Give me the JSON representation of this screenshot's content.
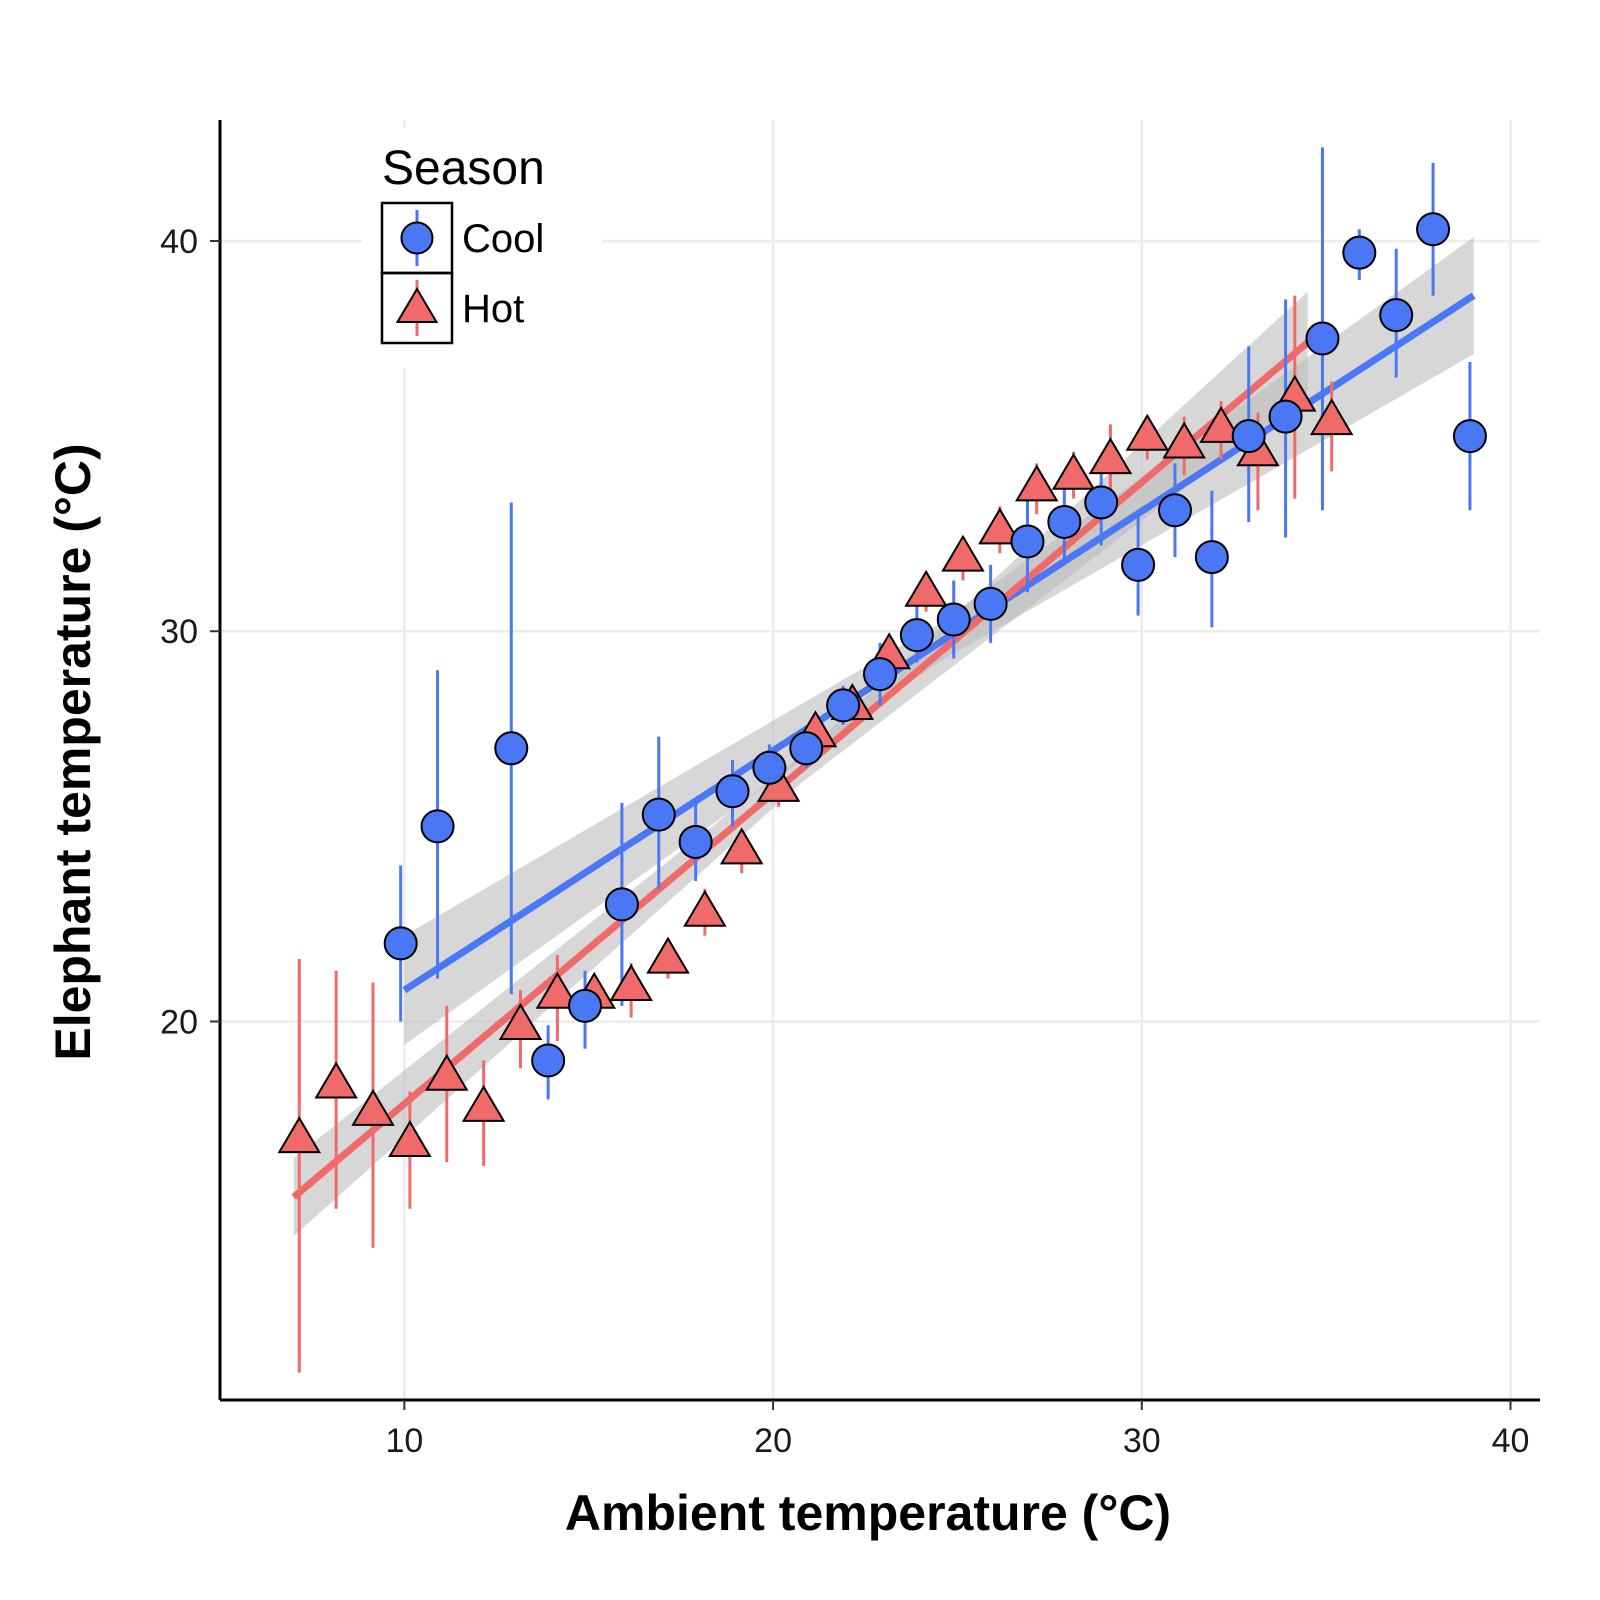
{
  "chart_data": {
    "type": "scatter",
    "xlabel": "Ambient temperature (°C)",
    "ylabel": "Elephant temperature (°C)",
    "xlim": [
      5,
      40.8
    ],
    "ylim": [
      10.3,
      43.1
    ],
    "x_ticks": [
      10,
      20,
      30,
      40
    ],
    "y_ticks": [
      20,
      30,
      40
    ],
    "grid": true,
    "legend": {
      "title": "Season",
      "placement": "top-left",
      "entries": [
        "Cool",
        "Hot"
      ]
    },
    "colors": {
      "Cool": "#4a78f5",
      "Hot": "#f06a6a",
      "band": "#bdbdbd"
    },
    "series": [
      {
        "name": "Cool",
        "marker": "circle",
        "points": [
          {
            "x": 10,
            "y": 22.0,
            "low": 20.0,
            "high": 24.0
          },
          {
            "x": 11,
            "y": 25.0,
            "low": 21.1,
            "high": 29.0
          },
          {
            "x": 13,
            "y": 27.0,
            "low": 20.7,
            "high": 33.3
          },
          {
            "x": 14,
            "y": 19.0,
            "low": 18.0,
            "high": 19.9
          },
          {
            "x": 15,
            "y": 20.4,
            "low": 19.3,
            "high": 21.3
          },
          {
            "x": 16,
            "y": 23.0,
            "low": 20.4,
            "high": 25.6
          },
          {
            "x": 17,
            "y": 25.3,
            "low": 23.4,
            "high": 27.3
          },
          {
            "x": 18,
            "y": 24.6,
            "low": 23.6,
            "high": 25.6
          },
          {
            "x": 19,
            "y": 25.9,
            "low": 25.0,
            "high": 26.7
          },
          {
            "x": 20,
            "y": 26.5,
            "low": 25.9,
            "high": 27.1
          },
          {
            "x": 21,
            "y": 27.0,
            "low": 26.5,
            "high": 27.4
          },
          {
            "x": 22,
            "y": 28.1,
            "low": 27.6,
            "high": 28.6
          },
          {
            "x": 23,
            "y": 28.9,
            "low": 28.1,
            "high": 29.7
          },
          {
            "x": 24,
            "y": 29.9,
            "low": 29.2,
            "high": 30.7
          },
          {
            "x": 25,
            "y": 30.3,
            "low": 29.3,
            "high": 31.3
          },
          {
            "x": 26,
            "y": 30.7,
            "low": 29.7,
            "high": 31.7
          },
          {
            "x": 27,
            "y": 32.3,
            "low": 31.0,
            "high": 33.6
          },
          {
            "x": 28,
            "y": 32.8,
            "low": 31.8,
            "high": 33.8
          },
          {
            "x": 29,
            "y": 33.3,
            "low": 32.2,
            "high": 34.4
          },
          {
            "x": 30,
            "y": 31.7,
            "low": 30.4,
            "high": 33.0
          },
          {
            "x": 31,
            "y": 33.1,
            "low": 31.9,
            "high": 34.3
          },
          {
            "x": 32,
            "y": 31.9,
            "low": 30.1,
            "high": 33.6
          },
          {
            "x": 33,
            "y": 35.0,
            "low": 32.8,
            "high": 37.3
          },
          {
            "x": 34,
            "y": 35.5,
            "low": 32.4,
            "high": 38.5
          },
          {
            "x": 35,
            "y": 37.5,
            "low": 33.1,
            "high": 42.4
          },
          {
            "x": 36,
            "y": 39.7,
            "low": 39.0,
            "high": 40.3
          },
          {
            "x": 37,
            "y": 38.1,
            "low": 36.5,
            "high": 39.8
          },
          {
            "x": 38,
            "y": 40.3,
            "low": 38.6,
            "high": 42.0
          },
          {
            "x": 39,
            "y": 35.0,
            "low": 33.1,
            "high": 36.9
          }
        ],
        "fit": {
          "x": [
            10,
            39
          ],
          "y": [
            20.8,
            38.6
          ],
          "band_half_width": [
            1.4,
            1.5
          ]
        }
      },
      {
        "name": "Hot",
        "marker": "triangle",
        "points": [
          {
            "x": 7,
            "y": 17.0,
            "low": 11.0,
            "high": 21.6
          },
          {
            "x": 8,
            "y": 18.4,
            "low": 15.2,
            "high": 21.3
          },
          {
            "x": 9,
            "y": 17.7,
            "low": 14.2,
            "high": 21.0
          },
          {
            "x": 10,
            "y": 16.9,
            "low": 15.2,
            "high": 18.2
          },
          {
            "x": 11,
            "y": 18.6,
            "low": 16.4,
            "high": 20.4
          },
          {
            "x": 12,
            "y": 17.8,
            "low": 16.3,
            "high": 19.0
          },
          {
            "x": 13,
            "y": 19.9,
            "low": 18.8,
            "high": 20.8
          },
          {
            "x": 14,
            "y": 20.7,
            "low": 19.5,
            "high": 21.7
          },
          {
            "x": 15,
            "y": 20.7,
            "low": 20.1,
            "high": 21.1
          },
          {
            "x": 16,
            "y": 20.9,
            "low": 20.1,
            "high": 21.5
          },
          {
            "x": 17,
            "y": 21.6,
            "low": 21.1,
            "high": 22.0
          },
          {
            "x": 18,
            "y": 22.8,
            "low": 22.2,
            "high": 23.4
          },
          {
            "x": 19,
            "y": 24.4,
            "low": 23.8,
            "high": 24.9
          },
          {
            "x": 20,
            "y": 26.0,
            "low": 25.5,
            "high": 26.5
          },
          {
            "x": 21,
            "y": 27.4,
            "low": 27.0,
            "high": 27.8
          },
          {
            "x": 22,
            "y": 28.1,
            "low": 27.7,
            "high": 28.5
          },
          {
            "x": 23,
            "y": 29.4,
            "low": 29.0,
            "high": 29.8
          },
          {
            "x": 24,
            "y": 31.0,
            "low": 30.5,
            "high": 31.4
          },
          {
            "x": 25,
            "y": 31.9,
            "low": 31.3,
            "high": 32.4
          },
          {
            "x": 26,
            "y": 32.6,
            "low": 32.0,
            "high": 33.2
          },
          {
            "x": 27,
            "y": 33.7,
            "low": 33.0,
            "high": 34.3
          },
          {
            "x": 28,
            "y": 34.0,
            "low": 33.4,
            "high": 34.6
          },
          {
            "x": 29,
            "y": 34.4,
            "low": 33.6,
            "high": 35.3
          },
          {
            "x": 30,
            "y": 35.0,
            "low": 34.4,
            "high": 35.5
          },
          {
            "x": 31,
            "y": 34.8,
            "low": 34.0,
            "high": 35.5
          },
          {
            "x": 32,
            "y": 35.2,
            "low": 34.4,
            "high": 35.9
          },
          {
            "x": 33,
            "y": 34.6,
            "low": 33.1,
            "high": 35.6
          },
          {
            "x": 34,
            "y": 36.0,
            "low": 33.4,
            "high": 38.6
          },
          {
            "x": 35,
            "y": 35.4,
            "low": 34.1,
            "high": 36.4
          }
        ],
        "fit": {
          "x": [
            7,
            34.5
          ],
          "y": [
            15.5,
            37.4
          ],
          "band_half_width": [
            1.0,
            1.3
          ]
        }
      }
    ]
  }
}
